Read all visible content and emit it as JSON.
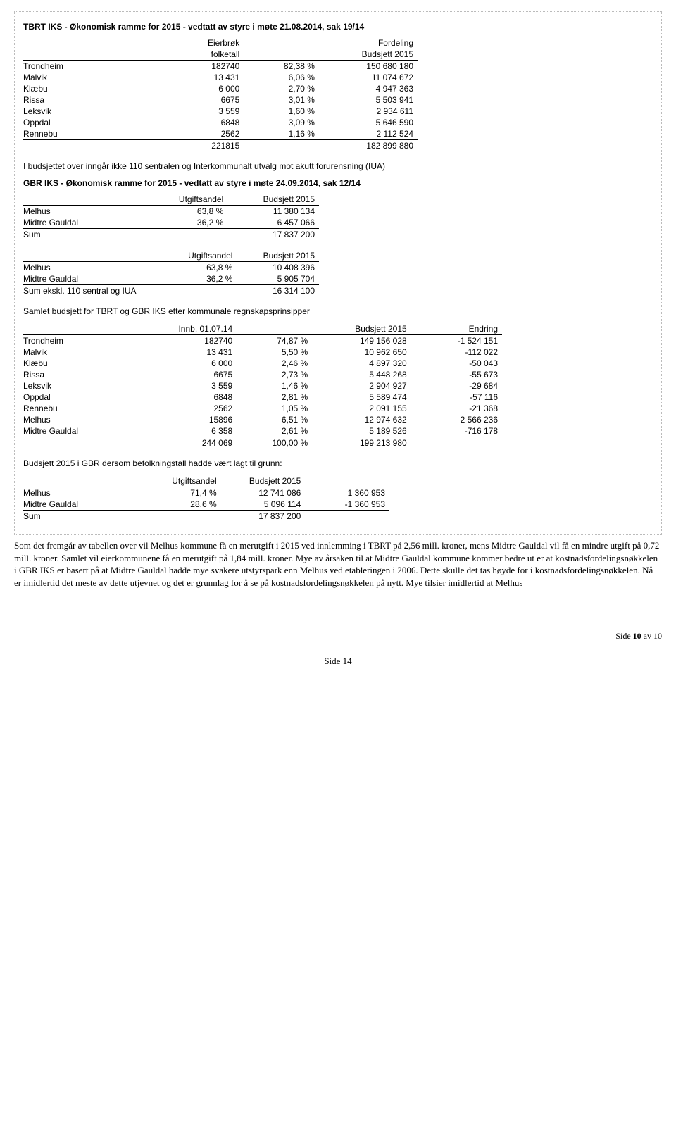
{
  "title1": "TBRT IKS - Økonomisk ramme for 2015 - vedtatt av styre i møte 21.08.2014, sak 19/14",
  "table1": {
    "headers": [
      "",
      "Eierbrøk folketall",
      "",
      "Fordeling Budsjett 2015"
    ],
    "h1a": "Eierbrøk",
    "h1b": "folketall",
    "h2a": "Fordeling",
    "h2b": "Budsjett 2015",
    "rows": [
      {
        "name": "Trondheim",
        "v1": "182740",
        "v2": "82,38 %",
        "v3": "150 680 180"
      },
      {
        "name": "Malvik",
        "v1": "13 431",
        "v2": "6,06 %",
        "v3": "11 074 672"
      },
      {
        "name": "Klæbu",
        "v1": "6 000",
        "v2": "2,70 %",
        "v3": "4 947 363"
      },
      {
        "name": "Rissa",
        "v1": "6675",
        "v2": "3,01 %",
        "v3": "5 503 941"
      },
      {
        "name": "Leksvik",
        "v1": "3 559",
        "v2": "1,60 %",
        "v3": "2 934 611"
      },
      {
        "name": "Oppdal",
        "v1": "6848",
        "v2": "3,09 %",
        "v3": "5 646 590"
      },
      {
        "name": "Rennebu",
        "v1": "2562",
        "v2": "1,16 %",
        "v3": "2 112 524"
      }
    ],
    "total": {
      "v1": "221815",
      "v3": "182 899 880"
    }
  },
  "note1": "I budsjettet over inngår ikke 110 sentralen og Interkommunalt utvalg mot akutt forurensning (IUA)",
  "title2": "GBR IKS - Økonomisk ramme for 2015 - vedtatt av styre i møte 24.09.2014, sak 12/14",
  "table2": {
    "h1": "Utgiftsandel",
    "h2": "Budsjett 2015",
    "rows": [
      {
        "name": "Melhus",
        "v1": "63,8 %",
        "v2": "11 380 134"
      },
      {
        "name": "Midtre Gauldal",
        "v1": "36,2 %",
        "v2": "6 457 066"
      }
    ],
    "sum": {
      "name": "Sum",
      "v2": "17 837 200"
    }
  },
  "table3": {
    "h1": "Utgiftsandel",
    "h2": "Budsjett 2015",
    "rows": [
      {
        "name": "Melhus",
        "v1": "63,8 %",
        "v2": "10 408 396"
      },
      {
        "name": "Midtre Gauldal",
        "v1": "36,2 %",
        "v2": "5 905 704"
      }
    ],
    "sum": {
      "name": "Sum ekskl. 110 sentral og IUA",
      "v2": "16 314 100"
    }
  },
  "note2": "Samlet budsjett for TBRT og GBR IKS etter kommunale regnskapsprinsipper",
  "table4": {
    "h1": "Innb. 01.07.14",
    "h2": "",
    "h3": "Budsjett 2015",
    "h4": "Endring",
    "rows": [
      {
        "name": "Trondheim",
        "v1": "182740",
        "v2": "74,87 %",
        "v3": "149 156 028",
        "v4": "-1 524 151"
      },
      {
        "name": "Malvik",
        "v1": "13 431",
        "v2": "5,50 %",
        "v3": "10 962 650",
        "v4": "-112 022"
      },
      {
        "name": "Klæbu",
        "v1": "6 000",
        "v2": "2,46 %",
        "v3": "4 897 320",
        "v4": "-50 043"
      },
      {
        "name": "Rissa",
        "v1": "6675",
        "v2": "2,73 %",
        "v3": "5 448 268",
        "v4": "-55 673"
      },
      {
        "name": "Leksvik",
        "v1": "3 559",
        "v2": "1,46 %",
        "v3": "2 904 927",
        "v4": "-29 684"
      },
      {
        "name": "Oppdal",
        "v1": "6848",
        "v2": "2,81 %",
        "v3": "5 589 474",
        "v4": "-57 116"
      },
      {
        "name": "Rennebu",
        "v1": "2562",
        "v2": "1,05 %",
        "v3": "2 091 155",
        "v4": "-21 368"
      },
      {
        "name": "Melhus",
        "v1": "15896",
        "v2": "6,51 %",
        "v3": "12 974 632",
        "v4": "2 566 236"
      },
      {
        "name": "Midtre Gauldal",
        "v1": "6 358",
        "v2": "2,61 %",
        "v3": "5 189 526",
        "v4": "-716 178"
      }
    ],
    "total": {
      "v1": "244 069",
      "v2": "100,00 %",
      "v3": "199 213 980"
    }
  },
  "note3": "Budsjett 2015 i GBR dersom befolkningstall hadde vært lagt til grunn:",
  "table5": {
    "h1": "Utgiftsandel",
    "h2": "Budsjett 2015",
    "rows": [
      {
        "name": "Melhus",
        "v1": "71,4 %",
        "v2": "12 741 086",
        "v3": "1 360 953"
      },
      {
        "name": "Midtre Gauldal",
        "v1": "28,6 %",
        "v2": "5 096 114",
        "v3": "-1 360 953"
      }
    ],
    "sum": {
      "name": "Sum",
      "v2": "17 837 200"
    }
  },
  "paragraph": "Som det fremgår av tabellen over vil Melhus kommune få en merutgift i 2015 ved innlemming i TBRT på 2,56 mill. kroner, mens Midtre Gauldal vil få en mindre utgift på 0,72 mill. kroner. Samlet vil eierkommunene få en merutgift på 1,84 mill. kroner. Mye av årsaken til at Midtre Gauldal kommune kommer bedre ut er at kostnadsfordelingsnøkkelen i GBR IKS er basert på at Midtre Gauldal hadde mye svakere utstyrspark enn Melhus ved etableringen i 2006. Dette skulle det tas høyde for i kostnadsfordelingsnøkkelen. Nå er imidlertid det meste av dette utjevnet og det er grunnlag for å se på kostnadsfordelingsnøkkelen på nytt. Mye tilsier imidlertid at Melhus",
  "footer": "Side 10 av 10",
  "pagenum": "Side 14"
}
